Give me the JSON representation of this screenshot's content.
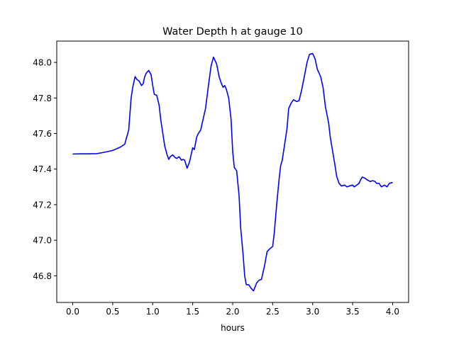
{
  "chart_data": {
    "type": "line",
    "title": "Water Depth h at gauge 10",
    "xlabel": "hours",
    "ylabel": "",
    "xlim": [
      -0.2,
      4.2
    ],
    "ylim": [
      46.65,
      48.12
    ],
    "xticks": [
      0.0,
      0.5,
      1.0,
      1.5,
      2.0,
      2.5,
      3.0,
      3.5,
      4.0
    ],
    "xtick_labels": [
      "0.0",
      "0.5",
      "1.0",
      "1.5",
      "2.0",
      "2.5",
      "3.0",
      "3.5",
      "4.0"
    ],
    "yticks": [
      46.8,
      47.0,
      47.2,
      47.4,
      47.6,
      47.8,
      48.0
    ],
    "ytick_labels": [
      "46.8",
      "47.0",
      "47.2",
      "47.4",
      "47.6",
      "47.8",
      "48.0"
    ],
    "grid": false,
    "series": [
      {
        "color": "#0000ff",
        "x": [
          0.0,
          0.1,
          0.2,
          0.3,
          0.4,
          0.5,
          0.6,
          0.65,
          0.7,
          0.73,
          0.75,
          0.78,
          0.8,
          0.83,
          0.86,
          0.88,
          0.9,
          0.92,
          0.95,
          0.98,
          1.0,
          1.02,
          1.05,
          1.08,
          1.1,
          1.12,
          1.15,
          1.18,
          1.2,
          1.22,
          1.25,
          1.28,
          1.3,
          1.33,
          1.36,
          1.38,
          1.4,
          1.43,
          1.46,
          1.5,
          1.52,
          1.55,
          1.57,
          1.6,
          1.63,
          1.66,
          1.7,
          1.73,
          1.76,
          1.8,
          1.83,
          1.86,
          1.88,
          1.9,
          1.92,
          1.95,
          1.98,
          2.0,
          2.02,
          2.05,
          2.08,
          2.1,
          2.13,
          2.15,
          2.17,
          2.2,
          2.23,
          2.26,
          2.3,
          2.33,
          2.36,
          2.38,
          2.4,
          2.43,
          2.46,
          2.5,
          2.52,
          2.55,
          2.58,
          2.6,
          2.62,
          2.65,
          2.68,
          2.7,
          2.73,
          2.76,
          2.8,
          2.83,
          2.86,
          2.9,
          2.93,
          2.96,
          3.0,
          3.03,
          3.06,
          3.1,
          3.13,
          3.16,
          3.2,
          3.22,
          3.25,
          3.28,
          3.3,
          3.33,
          3.36,
          3.4,
          3.43,
          3.46,
          3.5,
          3.52,
          3.55,
          3.58,
          3.6,
          3.62,
          3.65,
          3.68,
          3.7,
          3.72,
          3.75,
          3.78,
          3.8,
          3.83,
          3.86,
          3.88,
          3.9,
          3.93,
          3.96,
          4.0
        ],
        "y": [
          47.485,
          47.486,
          47.486,
          47.487,
          47.495,
          47.505,
          47.525,
          47.54,
          47.62,
          47.8,
          47.86,
          47.92,
          47.905,
          47.895,
          47.87,
          47.88,
          47.92,
          47.94,
          47.955,
          47.93,
          47.87,
          47.82,
          47.815,
          47.76,
          47.68,
          47.62,
          47.53,
          47.48,
          47.455,
          47.47,
          47.48,
          47.465,
          47.46,
          47.47,
          47.45,
          47.455,
          47.45,
          47.405,
          47.44,
          47.52,
          47.51,
          47.58,
          47.6,
          47.62,
          47.68,
          47.74,
          47.88,
          47.98,
          48.03,
          47.99,
          47.92,
          47.88,
          47.86,
          47.87,
          47.85,
          47.8,
          47.68,
          47.5,
          47.41,
          47.39,
          47.25,
          47.07,
          46.92,
          46.8,
          46.75,
          46.75,
          46.73,
          46.715,
          46.76,
          46.775,
          46.78,
          46.82,
          46.86,
          46.935,
          46.95,
          46.965,
          47.04,
          47.2,
          47.34,
          47.42,
          47.45,
          47.54,
          47.63,
          47.74,
          47.77,
          47.79,
          47.78,
          47.785,
          47.84,
          47.93,
          48.0,
          48.045,
          48.05,
          48.02,
          47.96,
          47.92,
          47.86,
          47.75,
          47.66,
          47.58,
          47.5,
          47.42,
          47.36,
          47.32,
          47.305,
          47.31,
          47.3,
          47.305,
          47.31,
          47.3,
          47.31,
          47.32,
          47.34,
          47.355,
          47.35,
          47.34,
          47.335,
          47.33,
          47.335,
          47.33,
          47.32,
          47.32,
          47.3,
          47.305,
          47.31,
          47.3,
          47.32,
          47.325
        ]
      }
    ]
  }
}
